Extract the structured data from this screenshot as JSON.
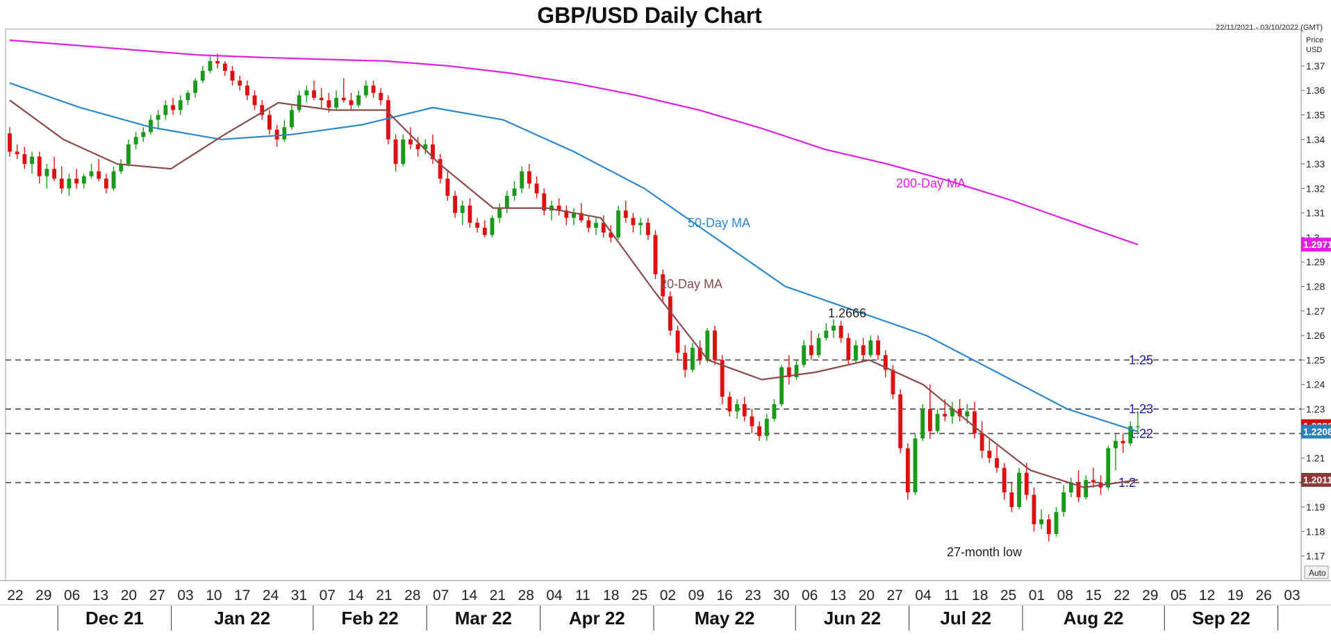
{
  "chart_data": {
    "type": "candlestick",
    "title": "GBP/USD Daily Chart",
    "date_range": "22/11/2021 - 03/10/2022 (GMT)",
    "y_axis_label": [
      "Price",
      "USD"
    ],
    "ylim": [
      1.16,
      1.385
    ],
    "y_ticks": [
      "1.37",
      "1.36",
      "1.35",
      "1.34",
      "1.33",
      "1.32",
      "1.31",
      "1.3",
      "1.29",
      "1.28",
      "1.27",
      "1.26",
      "1.25",
      "1.24",
      "1.23",
      "1.22",
      "1.21",
      "1.2",
      "1.19",
      "1.18",
      "1.17"
    ],
    "x_day_labels": [
      "22",
      "29",
      "06",
      "13",
      "20",
      "27",
      "03",
      "10",
      "17",
      "24",
      "31",
      "07",
      "14",
      "21",
      "28",
      "07",
      "14",
      "21",
      "28",
      "04",
      "11",
      "18",
      "25",
      "02",
      "09",
      "16",
      "23",
      "30",
      "06",
      "13",
      "20",
      "27",
      "04",
      "11",
      "18",
      "25",
      "01",
      "08",
      "15",
      "22",
      "29",
      "05",
      "12",
      "19",
      "26",
      "03"
    ],
    "x_month_labels": [
      "Dec 21",
      "Jan 22",
      "Feb 22",
      "Mar 22",
      "Apr 22",
      "May 22",
      "Jun 22",
      "Jul 22",
      "Aug 22",
      "Sep 22"
    ],
    "auto_label": "Auto",
    "horizontal_levels": [
      {
        "value": 1.25,
        "label": "1.25"
      },
      {
        "value": 1.23,
        "label": "1.23"
      },
      {
        "value": 1.22,
        "label": "1.22"
      },
      {
        "value": 1.2,
        "label": "1.2"
      }
    ],
    "price_tags": [
      {
        "value": 1.2971,
        "label": "1.2971",
        "color": "#e020e0"
      },
      {
        "value": 1.223,
        "label": "1.2230",
        "color": "#cc1111"
      },
      {
        "value": 1.2208,
        "label": "1.2208",
        "color": "#2a7fc0"
      },
      {
        "value": 1.2011,
        "label": "1.2011",
        "color": "#8b3a3a"
      }
    ],
    "series": [
      {
        "name": "200-Day MA",
        "color": "#e020e0",
        "values": [
          1.3805,
          1.3785,
          1.3765,
          1.3745,
          1.3735,
          1.3727,
          1.372,
          1.37,
          1.367,
          1.363,
          1.358,
          1.352,
          1.3445,
          1.336,
          1.33,
          1.323,
          1.315,
          1.306,
          1.2971
        ]
      },
      {
        "name": "50-Day MA",
        "color": "#2a88c8",
        "values": [
          1.363,
          1.353,
          1.345,
          1.34,
          1.342,
          1.346,
          1.353,
          1.348,
          1.335,
          1.32,
          1.3,
          1.28,
          1.27,
          1.26,
          1.245,
          1.23,
          1.2208
        ]
      },
      {
        "name": "20-Day MA",
        "color": "#8b4a4a",
        "values": [
          1.356,
          1.34,
          1.33,
          1.328,
          1.342,
          1.355,
          1.352,
          1.352,
          1.33,
          1.312,
          1.312,
          1.308,
          1.278,
          1.25,
          1.242,
          1.245,
          1.25,
          1.24,
          1.222,
          1.205,
          1.198,
          1.2011
        ]
      }
    ],
    "series_labels": [
      {
        "text": "200-Day MA",
        "color": "#e020e0"
      },
      {
        "text": "50-Day MA",
        "color": "#2a88c8"
      },
      {
        "text": "20-Day MA",
        "color": "#8b4a4a"
      }
    ],
    "annotations": [
      {
        "text": "1.2666"
      },
      {
        "text": "27-month low"
      }
    ],
    "candles": [
      [
        1.3425,
        1.345,
        1.333,
        1.335
      ],
      [
        1.335,
        1.338,
        1.332,
        1.334
      ],
      [
        1.334,
        1.337,
        1.328,
        1.33
      ],
      [
        1.33,
        1.335,
        1.326,
        1.333
      ],
      [
        1.333,
        1.335,
        1.322,
        1.325
      ],
      [
        1.325,
        1.33,
        1.32,
        1.328
      ],
      [
        1.328,
        1.333,
        1.323,
        1.324
      ],
      [
        1.324,
        1.329,
        1.318,
        1.32
      ],
      [
        1.32,
        1.326,
        1.317,
        1.324
      ],
      [
        1.324,
        1.328,
        1.32,
        1.322
      ],
      [
        1.322,
        1.326,
        1.32,
        1.325
      ],
      [
        1.325,
        1.33,
        1.324,
        1.327
      ],
      [
        1.327,
        1.332,
        1.323,
        1.324
      ],
      [
        1.324,
        1.326,
        1.318,
        1.32
      ],
      [
        1.32,
        1.329,
        1.319,
        1.327
      ],
      [
        1.327,
        1.332,
        1.326,
        1.33
      ],
      [
        1.33,
        1.34,
        1.329,
        1.338
      ],
      [
        1.338,
        1.343,
        1.336,
        1.341
      ],
      [
        1.341,
        1.345,
        1.339,
        1.343
      ],
      [
        1.343,
        1.35,
        1.342,
        1.348
      ],
      [
        1.348,
        1.352,
        1.344,
        1.35
      ],
      [
        1.35,
        1.356,
        1.348,
        1.354
      ],
      [
        1.354,
        1.357,
        1.35,
        1.352
      ],
      [
        1.352,
        1.358,
        1.35,
        1.356
      ],
      [
        1.356,
        1.36,
        1.354,
        1.359
      ],
      [
        1.359,
        1.365,
        1.357,
        1.364
      ],
      [
        1.364,
        1.37,
        1.363,
        1.368
      ],
      [
        1.368,
        1.374,
        1.367,
        1.372
      ],
      [
        1.372,
        1.375,
        1.369,
        1.371
      ],
      [
        1.371,
        1.372,
        1.366,
        1.368
      ],
      [
        1.368,
        1.37,
        1.362,
        1.364
      ],
      [
        1.364,
        1.366,
        1.36,
        1.362
      ],
      [
        1.362,
        1.364,
        1.356,
        1.358
      ],
      [
        1.358,
        1.36,
        1.352,
        1.354
      ],
      [
        1.354,
        1.356,
        1.348,
        1.35
      ],
      [
        1.35,
        1.352,
        1.342,
        1.344
      ],
      [
        1.344,
        1.346,
        1.337,
        1.34
      ],
      [
        1.34,
        1.348,
        1.339,
        1.345
      ],
      [
        1.345,
        1.354,
        1.344,
        1.352
      ],
      [
        1.352,
        1.36,
        1.351,
        1.358
      ],
      [
        1.358,
        1.362,
        1.355,
        1.36
      ],
      [
        1.36,
        1.364,
        1.356,
        1.357
      ],
      [
        1.357,
        1.361,
        1.353,
        1.356
      ],
      [
        1.356,
        1.359,
        1.351,
        1.353
      ],
      [
        1.353,
        1.36,
        1.352,
        1.357
      ],
      [
        1.357,
        1.365,
        1.355,
        1.356
      ],
      [
        1.356,
        1.359,
        1.352,
        1.354
      ],
      [
        1.354,
        1.36,
        1.353,
        1.358
      ],
      [
        1.358,
        1.364,
        1.357,
        1.362
      ],
      [
        1.362,
        1.364,
        1.357,
        1.359
      ],
      [
        1.359,
        1.361,
        1.354,
        1.356
      ],
      [
        1.356,
        1.358,
        1.338,
        1.34
      ],
      [
        1.34,
        1.342,
        1.327,
        1.33
      ],
      [
        1.33,
        1.342,
        1.329,
        1.34
      ],
      [
        1.34,
        1.345,
        1.336,
        1.338
      ],
      [
        1.338,
        1.341,
        1.333,
        1.336
      ],
      [
        1.336,
        1.34,
        1.334,
        1.338
      ],
      [
        1.338,
        1.342,
        1.33,
        1.332
      ],
      [
        1.332,
        1.334,
        1.322,
        1.324
      ],
      [
        1.324,
        1.327,
        1.315,
        1.317
      ],
      [
        1.317,
        1.319,
        1.308,
        1.31
      ],
      [
        1.31,
        1.315,
        1.305,
        1.313
      ],
      [
        1.313,
        1.316,
        1.304,
        1.306
      ],
      [
        1.306,
        1.308,
        1.302,
        1.304
      ],
      [
        1.304,
        1.307,
        1.3,
        1.301
      ],
      [
        1.301,
        1.309,
        1.3,
        1.308
      ],
      [
        1.308,
        1.314,
        1.306,
        1.312
      ],
      [
        1.312,
        1.319,
        1.31,
        1.317
      ],
      [
        1.317,
        1.323,
        1.315,
        1.32
      ],
      [
        1.32,
        1.329,
        1.318,
        1.327
      ],
      [
        1.327,
        1.33,
        1.32,
        1.322
      ],
      [
        1.322,
        1.325,
        1.316,
        1.318
      ],
      [
        1.318,
        1.32,
        1.309,
        1.311
      ],
      [
        1.311,
        1.315,
        1.307,
        1.313
      ],
      [
        1.313,
        1.316,
        1.309,
        1.311
      ],
      [
        1.311,
        1.313,
        1.305,
        1.308
      ],
      [
        1.308,
        1.312,
        1.305,
        1.31
      ],
      [
        1.31,
        1.314,
        1.306,
        1.307
      ],
      [
        1.307,
        1.309,
        1.302,
        1.304
      ],
      [
        1.304,
        1.308,
        1.301,
        1.306
      ],
      [
        1.306,
        1.309,
        1.3,
        1.302
      ],
      [
        1.302,
        1.305,
        1.298,
        1.3
      ],
      [
        1.3,
        1.313,
        1.299,
        1.311
      ],
      [
        1.311,
        1.315,
        1.306,
        1.308
      ],
      [
        1.308,
        1.31,
        1.302,
        1.305
      ],
      [
        1.305,
        1.308,
        1.301,
        1.306
      ],
      [
        1.306,
        1.308,
        1.299,
        1.301
      ],
      [
        1.301,
        1.303,
        1.283,
        1.285
      ],
      [
        1.285,
        1.287,
        1.274,
        1.276
      ],
      [
        1.276,
        1.278,
        1.26,
        1.262
      ],
      [
        1.262,
        1.264,
        1.25,
        1.253
      ],
      [
        1.253,
        1.256,
        1.243,
        1.246
      ],
      [
        1.246,
        1.257,
        1.245,
        1.255
      ],
      [
        1.255,
        1.258,
        1.248,
        1.25
      ],
      [
        1.25,
        1.263,
        1.249,
        1.262
      ],
      [
        1.262,
        1.264,
        1.248,
        1.25
      ],
      [
        1.25,
        1.252,
        1.232,
        1.235
      ],
      [
        1.235,
        1.237,
        1.227,
        1.229
      ],
      [
        1.229,
        1.234,
        1.226,
        1.232
      ],
      [
        1.232,
        1.235,
        1.225,
        1.227
      ],
      [
        1.227,
        1.23,
        1.22,
        1.223
      ],
      [
        1.223,
        1.225,
        1.217,
        1.219
      ],
      [
        1.219,
        1.228,
        1.217,
        1.226
      ],
      [
        1.226,
        1.234,
        1.225,
        1.232
      ],
      [
        1.232,
        1.248,
        1.231,
        1.247
      ],
      [
        1.247,
        1.252,
        1.24,
        1.243
      ],
      [
        1.243,
        1.25,
        1.242,
        1.248
      ],
      [
        1.248,
        1.258,
        1.247,
        1.256
      ],
      [
        1.256,
        1.262,
        1.25,
        1.252
      ],
      [
        1.252,
        1.261,
        1.251,
        1.259
      ],
      [
        1.259,
        1.265,
        1.258,
        1.262
      ],
      [
        1.262,
        1.2666,
        1.259,
        1.264
      ],
      [
        1.264,
        1.266,
        1.257,
        1.259
      ],
      [
        1.259,
        1.261,
        1.248,
        1.25
      ],
      [
        1.25,
        1.258,
        1.249,
        1.256
      ],
      [
        1.256,
        1.259,
        1.25,
        1.252
      ],
      [
        1.252,
        1.26,
        1.251,
        1.258
      ],
      [
        1.258,
        1.26,
        1.25,
        1.252
      ],
      [
        1.252,
        1.254,
        1.243,
        1.246
      ],
      [
        1.246,
        1.248,
        1.234,
        1.236
      ],
      [
        1.236,
        1.238,
        1.212,
        1.214
      ],
      [
        1.214,
        1.216,
        1.193,
        1.196
      ],
      [
        1.196,
        1.22,
        1.195,
        1.218
      ],
      [
        1.218,
        1.232,
        1.217,
        1.23
      ],
      [
        1.23,
        1.24,
        1.218,
        1.221
      ],
      [
        1.221,
        1.23,
        1.22,
        1.228
      ],
      [
        1.228,
        1.234,
        1.225,
        1.227
      ],
      [
        1.227,
        1.233,
        1.224,
        1.23
      ],
      [
        1.23,
        1.234,
        1.225,
        1.227
      ],
      [
        1.227,
        1.232,
        1.224,
        1.229
      ],
      [
        1.229,
        1.233,
        1.218,
        1.22
      ],
      [
        1.22,
        1.225,
        1.21,
        1.213
      ],
      [
        1.213,
        1.218,
        1.208,
        1.21
      ],
      [
        1.21,
        1.215,
        1.204,
        1.206
      ],
      [
        1.206,
        1.208,
        1.193,
        1.196
      ],
      [
        1.196,
        1.2,
        1.188,
        1.19
      ],
      [
        1.19,
        1.206,
        1.189,
        1.204
      ],
      [
        1.204,
        1.208,
        1.193,
        1.195
      ],
      [
        1.195,
        1.198,
        1.18,
        1.183
      ],
      [
        1.183,
        1.189,
        1.181,
        1.185
      ],
      [
        1.185,
        1.187,
        1.176,
        1.179
      ],
      [
        1.179,
        1.19,
        1.178,
        1.188
      ],
      [
        1.188,
        1.199,
        1.186,
        1.196
      ],
      [
        1.196,
        1.202,
        1.194,
        1.2
      ],
      [
        1.2,
        1.205,
        1.192,
        1.194
      ],
      [
        1.194,
        1.203,
        1.193,
        1.201
      ],
      [
        1.201,
        1.206,
        1.198,
        1.2
      ],
      [
        1.2,
        1.203,
        1.195,
        1.198
      ],
      [
        1.198,
        1.215,
        1.197,
        1.214
      ],
      [
        1.214,
        1.22,
        1.205,
        1.217
      ],
      [
        1.217,
        1.22,
        1.212,
        1.216
      ],
      [
        1.216,
        1.225,
        1.215,
        1.223
      ],
      [
        1.223,
        1.229,
        1.22,
        1.223
      ]
    ]
  }
}
